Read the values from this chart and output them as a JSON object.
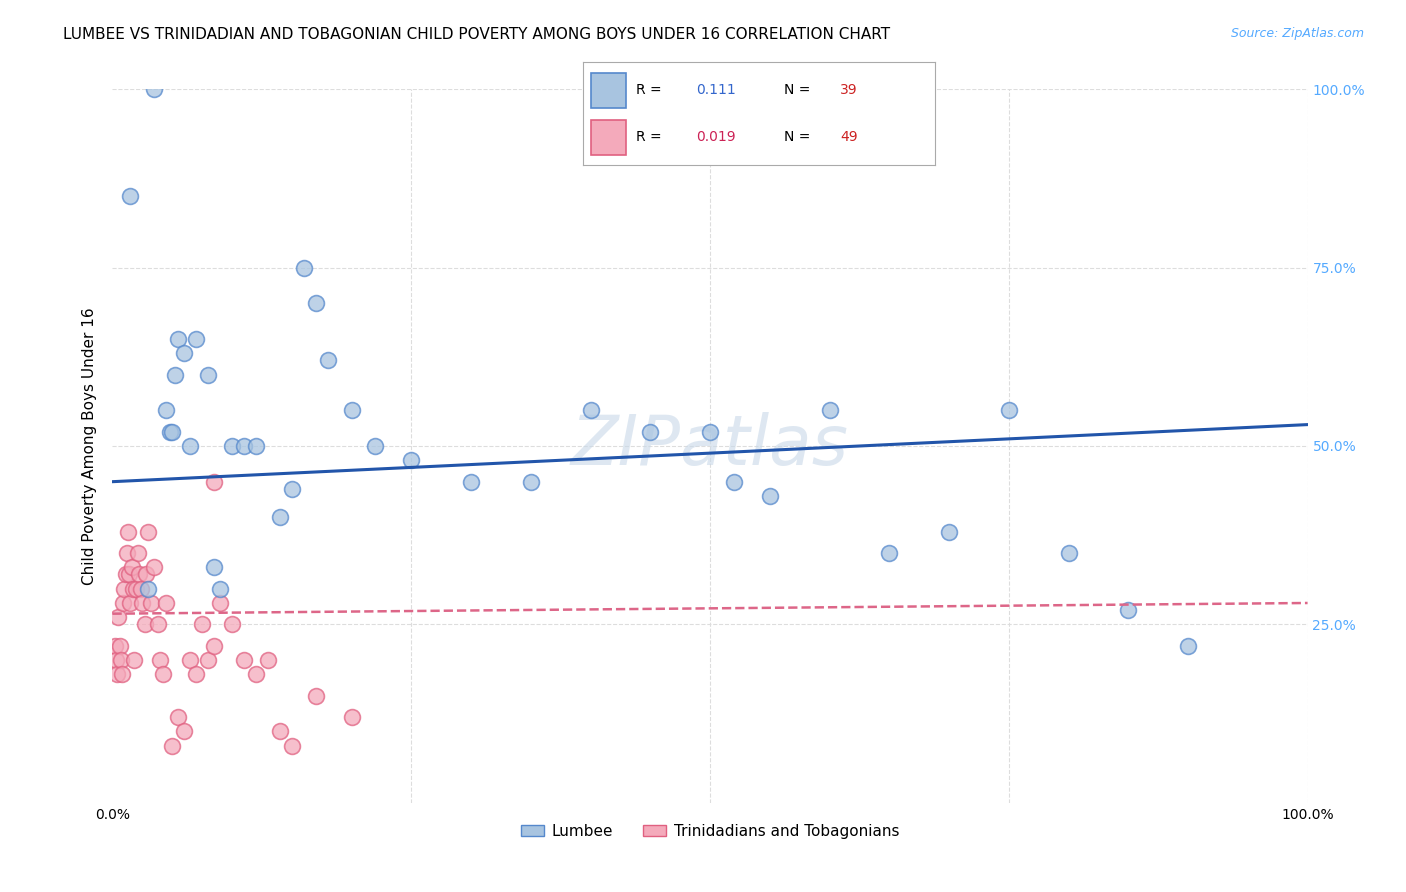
{
  "title": "LUMBEE VS TRINIDADIAN AND TOBAGONIAN CHILD POVERTY AMONG BOYS UNDER 16 CORRELATION CHART",
  "source": "Source: ZipAtlas.com",
  "ylabel": "Child Poverty Among Boys Under 16",
  "legend_labels": [
    "Lumbee",
    "Trinidadians and Tobagonians"
  ],
  "blue_color": "#A8C4E0",
  "pink_color": "#F4AABB",
  "blue_edge_color": "#5588CC",
  "pink_edge_color": "#E06080",
  "blue_line_color": "#2255AA",
  "pink_line_color": "#DD6688",
  "watermark": "ZIPatlas",
  "watermark_color": "#C8D8E8",
  "lumbee_x": [
    1.5,
    3.0,
    4.5,
    4.8,
    5.0,
    5.2,
    5.5,
    6.0,
    7.0,
    8.0,
    9.0,
    10.0,
    11.0,
    12.0,
    14.0,
    15.0,
    16.0,
    17.0,
    18.0,
    20.0,
    22.0,
    25.0,
    30.0,
    35.0,
    40.0,
    45.0,
    50.0,
    52.0,
    55.0,
    60.0,
    65.0,
    70.0,
    75.0,
    80.0,
    85.0,
    90.0,
    3.5,
    6.5,
    8.5
  ],
  "lumbee_y": [
    85.0,
    30.0,
    55.0,
    52.0,
    52.0,
    60.0,
    65.0,
    63.0,
    65.0,
    60.0,
    30.0,
    50.0,
    50.0,
    50.0,
    40.0,
    44.0,
    75.0,
    70.0,
    62.0,
    55.0,
    50.0,
    48.0,
    45.0,
    45.0,
    55.0,
    52.0,
    52.0,
    45.0,
    43.0,
    55.0,
    35.0,
    38.0,
    55.0,
    35.0,
    27.0,
    22.0,
    100.0,
    50.0,
    33.0
  ],
  "trini_x": [
    0.2,
    0.3,
    0.4,
    0.5,
    0.6,
    0.7,
    0.8,
    0.9,
    1.0,
    1.1,
    1.2,
    1.3,
    1.4,
    1.5,
    1.6,
    1.7,
    1.8,
    2.0,
    2.1,
    2.2,
    2.4,
    2.5,
    2.7,
    2.8,
    3.0,
    3.2,
    3.5,
    3.8,
    4.0,
    4.2,
    4.5,
    5.0,
    5.5,
    6.0,
    6.5,
    7.0,
    7.5,
    8.0,
    8.5,
    9.0,
    10.0,
    11.0,
    12.0,
    13.0,
    14.0,
    15.0,
    17.0,
    20.0,
    8.5
  ],
  "trini_y": [
    22.0,
    20.0,
    18.0,
    26.0,
    22.0,
    20.0,
    18.0,
    28.0,
    30.0,
    32.0,
    35.0,
    38.0,
    32.0,
    28.0,
    33.0,
    30.0,
    20.0,
    30.0,
    35.0,
    32.0,
    30.0,
    28.0,
    25.0,
    32.0,
    38.0,
    28.0,
    33.0,
    25.0,
    20.0,
    18.0,
    28.0,
    8.0,
    12.0,
    10.0,
    20.0,
    18.0,
    25.0,
    20.0,
    22.0,
    28.0,
    25.0,
    20.0,
    18.0,
    20.0,
    10.0,
    8.0,
    15.0,
    12.0,
    45.0
  ],
  "blue_line_start_y": 45.0,
  "blue_line_end_y": 53.0,
  "pink_line_start_y": 26.5,
  "pink_line_end_y": 28.0,
  "xlim": [
    0,
    100
  ],
  "ylim": [
    0,
    100
  ],
  "grid_color": "#DDDDDD",
  "background_color": "#FFFFFF",
  "right_tick_color": "#55AAFF",
  "source_color": "#55AAFF"
}
